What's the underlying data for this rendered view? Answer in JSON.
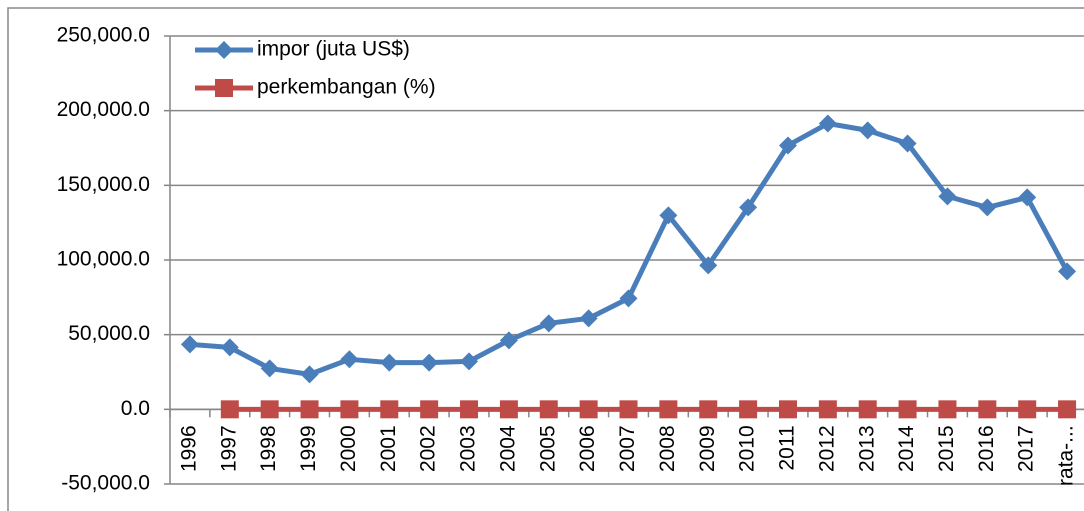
{
  "chart_data": {
    "type": "line",
    "categories": [
      "1996",
      "1997",
      "1998",
      "1999",
      "2000",
      "2001",
      "2002",
      "2003",
      "2004",
      "2005",
      "2006",
      "2007",
      "2008",
      "2009",
      "2010",
      "2011",
      "2012",
      "2013",
      "2014",
      "2015",
      "2016",
      "2017",
      "rata-..."
    ],
    "series": [
      {
        "name": "impor (juta US$)",
        "color": "#4a7ebb",
        "marker": "diamond",
        "values": [
          43500,
          41500,
          27400,
          23400,
          33500,
          31300,
          31300,
          32100,
          46200,
          57600,
          60900,
          74300,
          129900,
          96400,
          135200,
          176700,
          191400,
          186800,
          178000,
          142600,
          135200,
          141900,
          92400
        ]
      },
      {
        "name": "perkembangan (%)",
        "color": "#be4b48",
        "marker": "square",
        "values": [
          null,
          0,
          0,
          0,
          0,
          0,
          0,
          0,
          0,
          0,
          0,
          0,
          0,
          0,
          0,
          0,
          0,
          0,
          0,
          0,
          0,
          0,
          0
        ]
      }
    ],
    "ylim": [
      -50000,
      250000
    ],
    "yticks": [
      {
        "value": -50000,
        "label": "-50,000.0"
      },
      {
        "value": 0,
        "label": "0.0"
      },
      {
        "value": 50000,
        "label": "50,000.0"
      },
      {
        "value": 100000,
        "label": "100,000.0"
      },
      {
        "value": 150000,
        "label": "150,000.0"
      },
      {
        "value": 200000,
        "label": "200,000.0"
      },
      {
        "value": 250000,
        "label": "250,000.0"
      }
    ],
    "grid": true
  }
}
